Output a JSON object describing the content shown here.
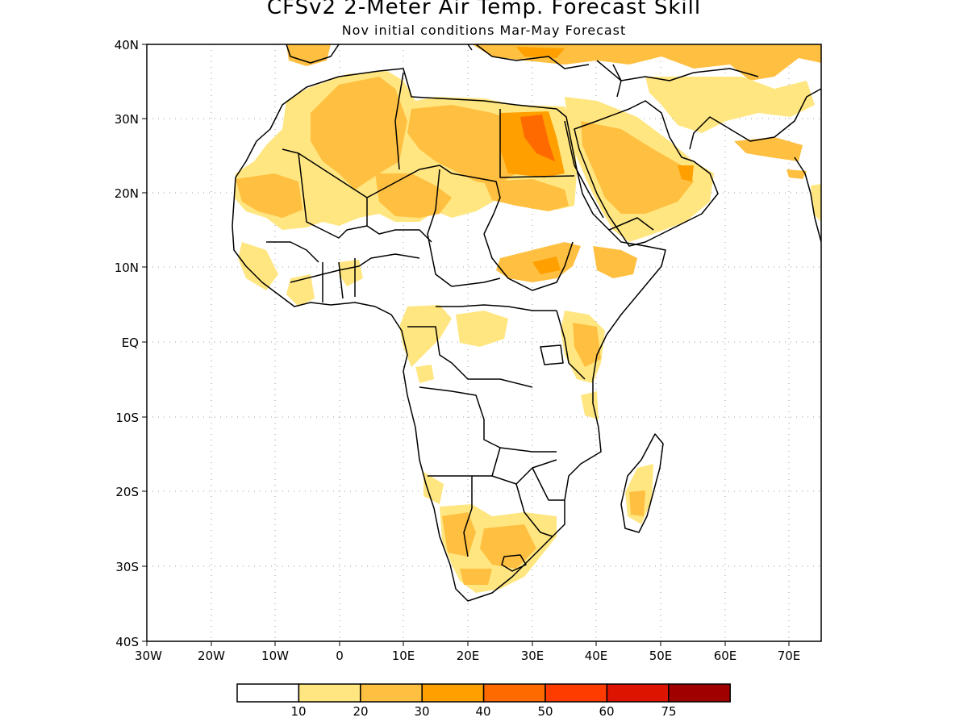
{
  "title": "CFSv2 2-Meter Air Temp. Forecast Skill",
  "subtitle": "Nov initial conditions  Mar-May Forecast",
  "lat_ticks": [
    "40N",
    "30N",
    "20N",
    "10N",
    "EQ",
    "10S",
    "20S",
    "30S",
    "40S"
  ],
  "lon_ticks": [
    "30W",
    "20W",
    "10W",
    "0",
    "10E",
    "20E",
    "30E",
    "40E",
    "50E",
    "60E",
    "70E"
  ],
  "legend": {
    "labels": [
      "10",
      "20",
      "30",
      "40",
      "50",
      "60",
      "75"
    ],
    "colors": [
      "#ffffff",
      "#ffe680",
      "#ffbf40",
      "#ff9f00",
      "#ff6a00",
      "#ff3c00",
      "#dc1400",
      "#a00000"
    ]
  }
}
